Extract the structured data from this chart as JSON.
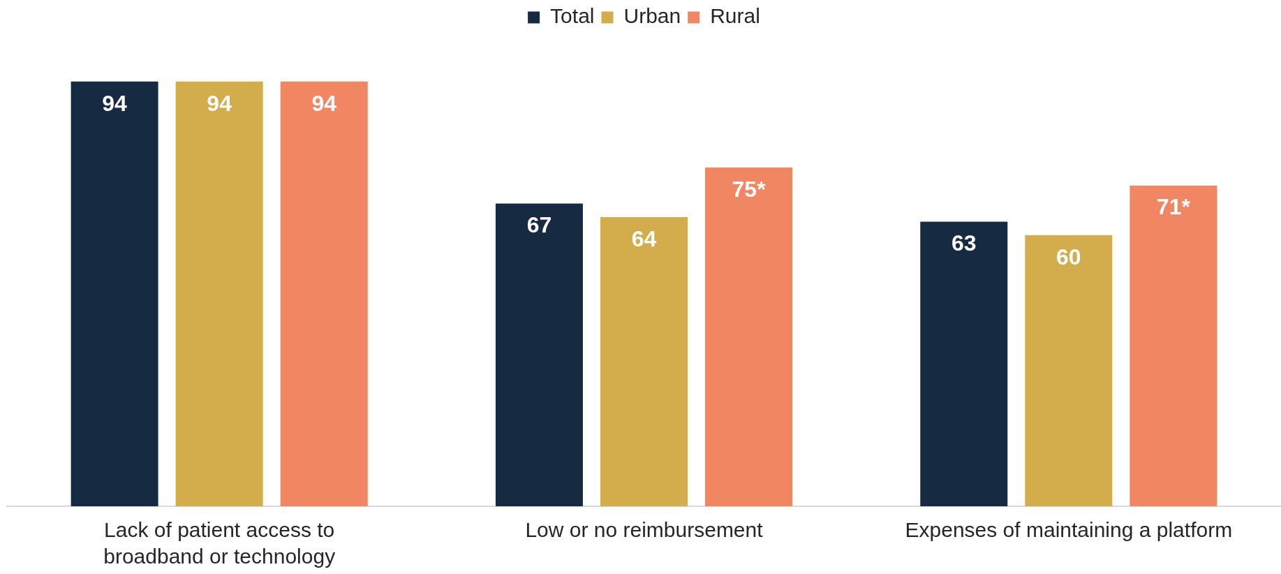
{
  "chart_data": {
    "type": "bar",
    "categories": [
      "Lack of patient access to broadband or technology",
      "Low or no reimbursement",
      "Expenses of maintaining a platform"
    ],
    "series": [
      {
        "name": "Total",
        "color": "#162a42",
        "values": [
          94,
          67,
          63
        ],
        "value_labels": [
          "94",
          "67",
          "63"
        ]
      },
      {
        "name": "Urban",
        "color": "#d3ad4c",
        "values": [
          94,
          64,
          60
        ],
        "value_labels": [
          "94",
          "64",
          "60"
        ]
      },
      {
        "name": "Rural",
        "color": "#f08662",
        "values": [
          94,
          75,
          71
        ],
        "value_labels": [
          "94",
          "75*",
          "71*"
        ]
      }
    ],
    "legend": "top"
  }
}
